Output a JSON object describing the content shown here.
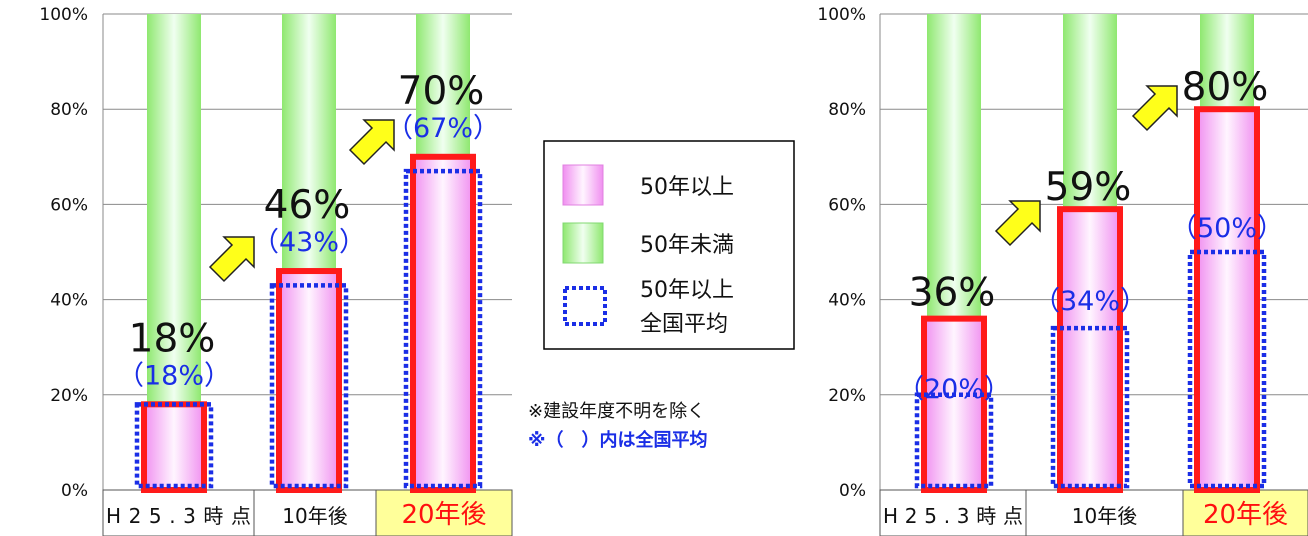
{
  "colors": {
    "age50_fill": "#f6c6f6",
    "under50_fill": "#b4f09a",
    "bar_outline": "#ff1a1a",
    "national_average_outline": "#1a2ee6",
    "highlight_category_bg": "#ffff9a",
    "highlight_category_text": "#ff1010",
    "arrow_fill": "#ffff1a"
  },
  "chart_data": [
    {
      "type": "bar",
      "ylim": [
        0,
        100
      ],
      "yticks": [
        "0%",
        "20%",
        "40%",
        "60%",
        "80%",
        "100%"
      ],
      "categories": [
        "H25.3時点",
        "10年後",
        "20年後"
      ],
      "highlight_category": "20年後",
      "series": [
        {
          "name": "50年以上",
          "values": [
            18,
            46,
            70
          ]
        },
        {
          "name": "50年未満",
          "values": [
            82,
            54,
            30
          ]
        },
        {
          "name": "50年以上 全国平均",
          "values": [
            18,
            43,
            67
          ]
        }
      ],
      "value_labels": [
        "18%",
        "46%",
        "70%"
      ],
      "average_labels": [
        "（18%）",
        "（43%）",
        "（67%）"
      ]
    },
    {
      "type": "bar",
      "ylim": [
        0,
        100
      ],
      "yticks": [
        "0%",
        "20%",
        "40%",
        "60%",
        "80%",
        "100%"
      ],
      "categories": [
        "H25.3時点",
        "10年後",
        "20年後"
      ],
      "highlight_category": "20年後",
      "series": [
        {
          "name": "50年以上",
          "values": [
            36,
            59,
            80
          ]
        },
        {
          "name": "50年未満",
          "values": [
            64,
            41,
            20
          ]
        },
        {
          "name": "50年以上 全国平均",
          "values": [
            20,
            34,
            50
          ]
        }
      ],
      "value_labels": [
        "36%",
        "59%",
        "80%"
      ],
      "average_labels": [
        "（20%）",
        "（34%）",
        "（50%）"
      ]
    }
  ],
  "legend": {
    "items": [
      {
        "label": "50年以上",
        "icon": "pink-gradient-swatch"
      },
      {
        "label": "50年未満",
        "icon": "green-gradient-swatch"
      },
      {
        "label": "50年以上",
        "label2": "全国平均",
        "icon": "blue-dotted-box"
      }
    ]
  },
  "notes": {
    "line1": "※建設年度不明を除く",
    "line2": "※（　）内は全国平均"
  }
}
